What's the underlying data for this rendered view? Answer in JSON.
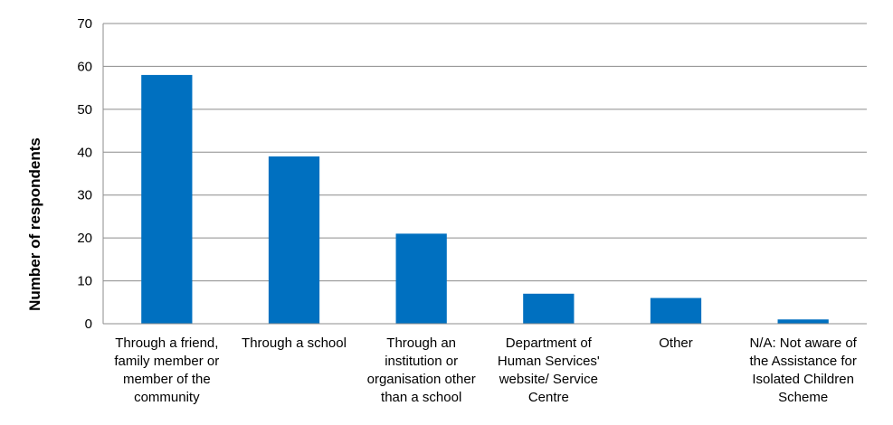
{
  "chart_data": {
    "type": "bar",
    "title": "",
    "xlabel": "",
    "ylabel": "Number of respondents",
    "ylim": [
      0,
      70
    ],
    "yticks": [
      0,
      10,
      20,
      30,
      40,
      50,
      60,
      70
    ],
    "grid": true,
    "legend": "none",
    "bar_color": "#0070C0",
    "categories": [
      [
        "Through a friend,",
        "family member or",
        "member of the",
        "community"
      ],
      [
        "Through a school"
      ],
      [
        "Through an",
        "institution or",
        "organisation other",
        "than a school"
      ],
      [
        "Department of",
        "Human Services'",
        "website/ Service",
        "Centre"
      ],
      [
        "Other"
      ],
      [
        "N/A: Not aware of",
        "the Assistance for",
        "Isolated Children",
        "Scheme"
      ]
    ],
    "values": [
      58,
      39,
      21,
      7,
      6,
      1
    ]
  }
}
